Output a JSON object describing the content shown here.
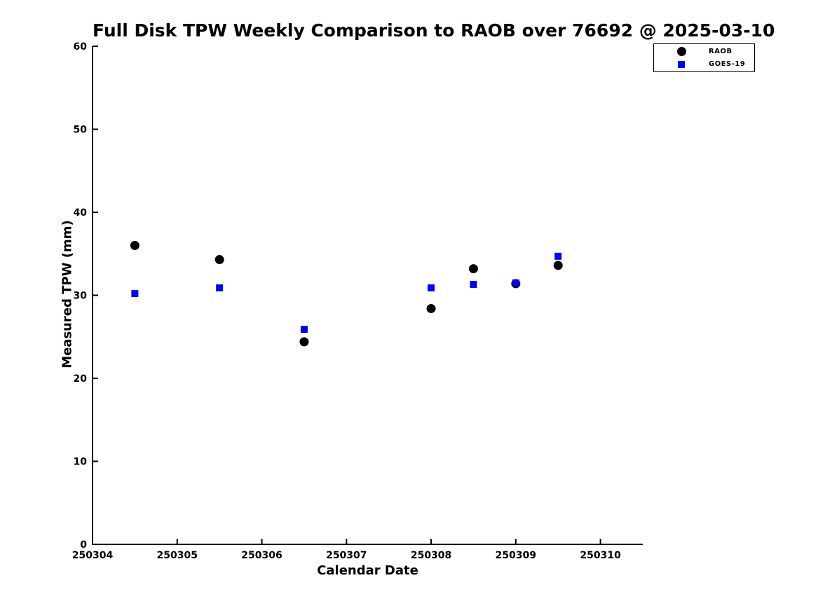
{
  "chart_data": {
    "type": "scatter",
    "title": "Full Disk TPW Weekly Comparison to RAOB over 76692 @ 2025-03-10",
    "xlabel": "Calendar Date",
    "ylabel": "Measured TPW (mm)",
    "xlim": [
      250304,
      250310.5
    ],
    "ylim": [
      0,
      60
    ],
    "x_ticks": [
      250304,
      250305,
      250306,
      250307,
      250308,
      250309,
      250310
    ],
    "y_ticks": [
      0,
      10,
      20,
      30,
      40,
      50,
      60
    ],
    "grid": false,
    "tick_direction": "in",
    "legend_position": "outside-upper-right",
    "x": [
      250304.5,
      250305.5,
      250306.5,
      250308.0,
      250308.5,
      250309.0,
      250309.5
    ],
    "series": [
      {
        "name": "RAOB",
        "marker": "circle",
        "color": "#000000",
        "values": [
          36.0,
          34.3,
          24.4,
          28.4,
          33.2,
          31.4,
          33.6
        ]
      },
      {
        "name": "GOES-19",
        "marker": "square",
        "color": "#0000ff",
        "values": [
          30.2,
          30.9,
          25.9,
          30.9,
          31.3,
          31.5,
          34.7
        ]
      }
    ]
  },
  "colors": {
    "background": "#ffffff",
    "axis": "#000000",
    "text": "#000000"
  }
}
